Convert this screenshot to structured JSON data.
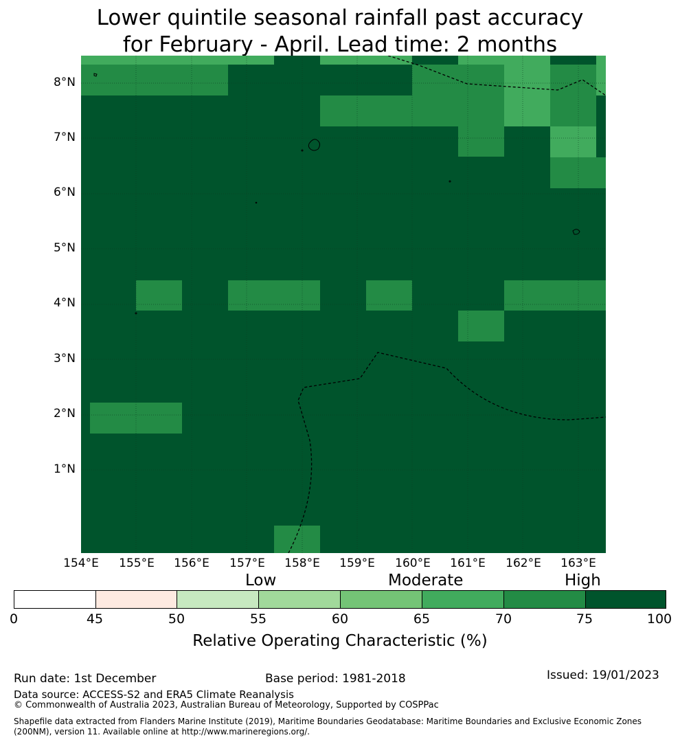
{
  "title": {
    "line1": "Lower quintile seasonal rainfall past accuracy",
    "line2": "for February - April. Lead time: 2 months"
  },
  "map": {
    "region": "Federated States of Micronesia (Pohnpei / Kosrae area)",
    "lon_range": [
      154,
      163.5
    ],
    "lat_range": [
      -0.5,
      8.5
    ],
    "lat_labels": [
      "8°N",
      "7°N",
      "6°N",
      "5°N",
      "4°N",
      "3°N",
      "2°N",
      "1°N"
    ],
    "lon_labels": [
      "154°E",
      "155°E",
      "156°E",
      "157°E",
      "158°E",
      "159°E",
      "160°E",
      "161°E",
      "162°E",
      "163°E"
    ],
    "cell_colors": {
      "75-100": "#00542c",
      "70-75": "#238b45",
      "65-70": "#41ab5d"
    }
  },
  "colorbar": {
    "category_labels": [
      "Low",
      "Moderate",
      "High"
    ],
    "ticks": [
      "0",
      "45",
      "50",
      "55",
      "60",
      "65",
      "70",
      "75",
      "100"
    ],
    "colors": [
      "#ffffff",
      "#feeae1",
      "#c7e9c0",
      "#a1d99b",
      "#74c476",
      "#41ab5d",
      "#238b45",
      "#00542c"
    ],
    "label": "Relative Operating Characteristic (%)"
  },
  "footer": {
    "run_date": "Run date: 1st December",
    "base_period": "Base period: 1981-2018",
    "issued": "Issued: 19/01/2023",
    "data_source": "Data source: ACCESS-S2 and ERA5 Climate Reanalysis",
    "copyright": "© Commonwealth of Australia 2023, Australian Bureau of Meteorology, Supported by COSPPac",
    "shapefile_line1": "Shapefile data extracted from Flanders Marine Institute (2019), Maritime Boundaries Geodatabase: Maritime Boundaries and Exclusive Economic Zones",
    "shapefile_line2": "(200NM), version 11. Available online at http://www.marineregions.org/."
  }
}
